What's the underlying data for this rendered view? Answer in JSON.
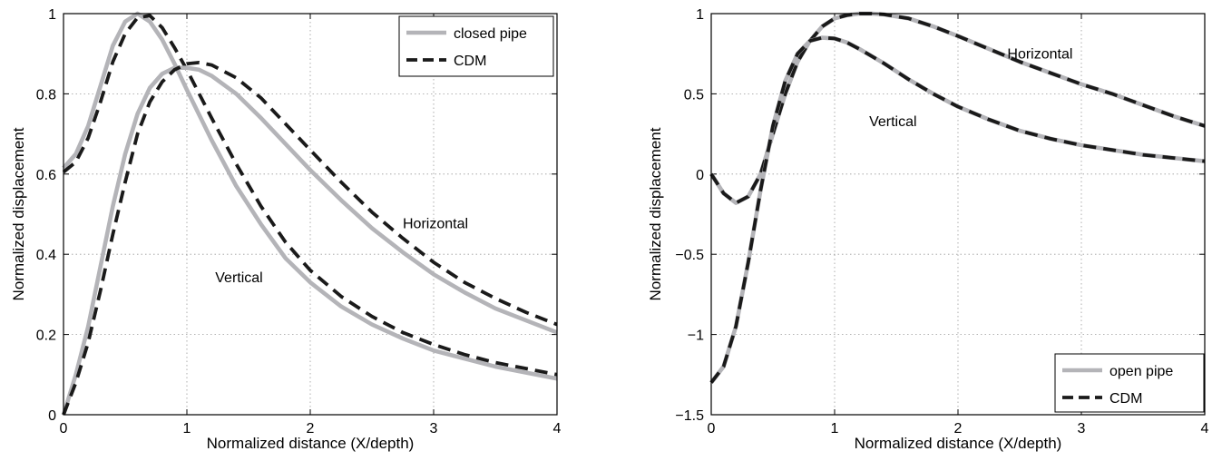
{
  "chart_data": [
    {
      "type": "line",
      "xlabel": "Normalized distance (X/depth)",
      "ylabel": "Normalized displacement",
      "xlim": [
        0,
        4
      ],
      "ylim": [
        0,
        1
      ],
      "xticks": [
        0,
        1,
        2,
        3,
        4
      ],
      "xtick_labels": [
        "0",
        "1",
        "2",
        "3",
        "4"
      ],
      "yticks": [
        0,
        0.2,
        0.4,
        0.6,
        0.8,
        1
      ],
      "ytick_labels": [
        "0",
        "0.2",
        "0.4",
        "0.6",
        "0.8",
        "1"
      ],
      "grid": true,
      "legend_position": "top-right",
      "legend": [
        {
          "label": "closed pipe",
          "color": "#b4b4b8",
          "style": "solid"
        },
        {
          "label": "CDM",
          "color": "#1a1a1a",
          "style": "dashed"
        }
      ],
      "annotations": [
        {
          "text": "Horizontal",
          "x": 2.75,
          "y": 0.465
        },
        {
          "text": "Vertical",
          "x": 1.23,
          "y": 0.33
        }
      ],
      "series": [
        {
          "name": "closed pipe",
          "group": "Horizontal",
          "color": "#b4b4b8",
          "style": "solid",
          "x": [
            0,
            0.1,
            0.2,
            0.3,
            0.4,
            0.5,
            0.6,
            0.7,
            0.8,
            0.9,
            1.0,
            1.2,
            1.4,
            1.6,
            1.8,
            2.0,
            2.25,
            2.5,
            2.75,
            3.0,
            3.25,
            3.5,
            3.75,
            4.0
          ],
          "y": [
            0.615,
            0.65,
            0.72,
            0.82,
            0.92,
            0.98,
            1.0,
            0.98,
            0.935,
            0.875,
            0.81,
            0.685,
            0.57,
            0.475,
            0.39,
            0.33,
            0.27,
            0.225,
            0.19,
            0.16,
            0.14,
            0.12,
            0.105,
            0.09
          ]
        },
        {
          "name": "CDM",
          "group": "Horizontal",
          "color": "#1a1a1a",
          "style": "dashed",
          "x": [
            0,
            0.1,
            0.2,
            0.3,
            0.4,
            0.5,
            0.6,
            0.7,
            0.8,
            0.9,
            1.0,
            1.2,
            1.4,
            1.6,
            1.8,
            2.0,
            2.25,
            2.5,
            2.75,
            3.0,
            3.25,
            3.5,
            3.75,
            4.0
          ],
          "y": [
            0.605,
            0.63,
            0.69,
            0.78,
            0.88,
            0.95,
            0.99,
            0.995,
            0.965,
            0.915,
            0.86,
            0.74,
            0.625,
            0.52,
            0.43,
            0.36,
            0.295,
            0.245,
            0.205,
            0.175,
            0.15,
            0.13,
            0.115,
            0.1
          ]
        },
        {
          "name": "closed pipe",
          "group": "Vertical",
          "color": "#b4b4b8",
          "style": "solid",
          "x": [
            0,
            0.1,
            0.2,
            0.3,
            0.4,
            0.5,
            0.6,
            0.7,
            0.8,
            0.9,
            1.0,
            1.1,
            1.2,
            1.4,
            1.6,
            1.8,
            2.0,
            2.25,
            2.5,
            2.75,
            3.0,
            3.25,
            3.5,
            3.75,
            4.0
          ],
          "y": [
            0.0,
            0.1,
            0.22,
            0.37,
            0.52,
            0.65,
            0.75,
            0.815,
            0.85,
            0.865,
            0.865,
            0.86,
            0.845,
            0.8,
            0.74,
            0.675,
            0.61,
            0.535,
            0.465,
            0.405,
            0.35,
            0.305,
            0.265,
            0.235,
            0.205
          ]
        },
        {
          "name": "CDM",
          "group": "Vertical",
          "color": "#1a1a1a",
          "style": "dashed",
          "x": [
            0,
            0.1,
            0.2,
            0.3,
            0.4,
            0.5,
            0.6,
            0.7,
            0.8,
            0.9,
            1.0,
            1.1,
            1.2,
            1.4,
            1.6,
            1.8,
            2.0,
            2.25,
            2.5,
            2.75,
            3.0,
            3.25,
            3.5,
            3.75,
            4.0
          ],
          "y": [
            0.0,
            0.08,
            0.18,
            0.31,
            0.45,
            0.58,
            0.7,
            0.78,
            0.83,
            0.86,
            0.875,
            0.878,
            0.872,
            0.84,
            0.79,
            0.725,
            0.66,
            0.58,
            0.505,
            0.44,
            0.38,
            0.33,
            0.29,
            0.255,
            0.225
          ]
        }
      ]
    },
    {
      "type": "line",
      "xlabel": "Normalized distance (X/depth)",
      "ylabel": "Normalized displacement",
      "xlim": [
        0,
        4
      ],
      "ylim": [
        -1.5,
        1
      ],
      "xticks": [
        0,
        1,
        2,
        3,
        4
      ],
      "xtick_labels": [
        "0",
        "1",
        "2",
        "3",
        "4"
      ],
      "yticks": [
        -1.5,
        -1,
        -0.5,
        0,
        0.5,
        1
      ],
      "ytick_labels": [
        "−1.5",
        "−1",
        "−0.5",
        "0",
        "0.5",
        "1"
      ],
      "grid": true,
      "legend_position": "bottom-right",
      "legend": [
        {
          "label": "open pipe",
          "color": "#b4b4b8",
          "style": "solid"
        },
        {
          "label": "CDM",
          "color": "#1a1a1a",
          "style": "dashed"
        }
      ],
      "annotations": [
        {
          "text": "Horizontal",
          "x": 2.4,
          "y": 0.72
        },
        {
          "text": "Vertical",
          "x": 1.28,
          "y": 0.3
        }
      ],
      "series": [
        {
          "name": "open pipe",
          "group": "Horizontal",
          "color": "#b4b4b8",
          "style": "solid",
          "x": [
            0,
            0.1,
            0.2,
            0.3,
            0.4,
            0.5,
            0.6,
            0.7,
            0.8,
            0.9,
            1.0,
            1.1,
            1.2,
            1.3,
            1.4,
            1.6,
            1.8,
            2.0,
            2.25,
            2.5,
            2.75,
            3.0,
            3.25,
            3.5,
            3.75,
            4.0
          ],
          "y": [
            0.0,
            -0.12,
            -0.18,
            -0.14,
            0.0,
            0.25,
            0.5,
            0.7,
            0.83,
            0.92,
            0.97,
            0.99,
            1.0,
            1.0,
            0.995,
            0.97,
            0.92,
            0.86,
            0.78,
            0.7,
            0.63,
            0.56,
            0.5,
            0.43,
            0.36,
            0.3
          ]
        },
        {
          "name": "CDM",
          "group": "Horizontal",
          "color": "#1a1a1a",
          "style": "dashed",
          "x": [
            0,
            0.1,
            0.2,
            0.3,
            0.4,
            0.5,
            0.6,
            0.7,
            0.8,
            0.9,
            1.0,
            1.1,
            1.2,
            1.3,
            1.4,
            1.6,
            1.8,
            2.0,
            2.25,
            2.5,
            2.75,
            3.0,
            3.25,
            3.5,
            3.75,
            4.0
          ],
          "y": [
            0.0,
            -0.12,
            -0.18,
            -0.14,
            0.0,
            0.25,
            0.5,
            0.7,
            0.83,
            0.92,
            0.97,
            0.99,
            1.0,
            1.0,
            0.995,
            0.97,
            0.92,
            0.86,
            0.78,
            0.7,
            0.63,
            0.56,
            0.5,
            0.43,
            0.36,
            0.3
          ]
        },
        {
          "name": "open pipe",
          "group": "Vertical",
          "color": "#b4b4b8",
          "style": "solid",
          "x": [
            0,
            0.1,
            0.2,
            0.3,
            0.4,
            0.5,
            0.6,
            0.7,
            0.8,
            0.9,
            1.0,
            1.1,
            1.2,
            1.4,
            1.6,
            1.8,
            2.0,
            2.25,
            2.5,
            2.75,
            3.0,
            3.25,
            3.5,
            3.75,
            4.0
          ],
          "y": [
            -1.3,
            -1.2,
            -0.95,
            -0.55,
            -0.1,
            0.3,
            0.58,
            0.75,
            0.83,
            0.85,
            0.845,
            0.82,
            0.78,
            0.69,
            0.59,
            0.5,
            0.42,
            0.34,
            0.27,
            0.22,
            0.18,
            0.15,
            0.12,
            0.1,
            0.08
          ]
        },
        {
          "name": "CDM",
          "group": "Vertical",
          "color": "#1a1a1a",
          "style": "dashed",
          "x": [
            0,
            0.1,
            0.2,
            0.3,
            0.4,
            0.5,
            0.6,
            0.7,
            0.8,
            0.9,
            1.0,
            1.1,
            1.2,
            1.4,
            1.6,
            1.8,
            2.0,
            2.25,
            2.5,
            2.75,
            3.0,
            3.25,
            3.5,
            3.75,
            4.0
          ],
          "y": [
            -1.3,
            -1.2,
            -0.95,
            -0.55,
            -0.1,
            0.3,
            0.58,
            0.75,
            0.83,
            0.85,
            0.845,
            0.82,
            0.78,
            0.69,
            0.59,
            0.5,
            0.42,
            0.34,
            0.27,
            0.22,
            0.18,
            0.15,
            0.12,
            0.1,
            0.08
          ]
        }
      ]
    }
  ]
}
